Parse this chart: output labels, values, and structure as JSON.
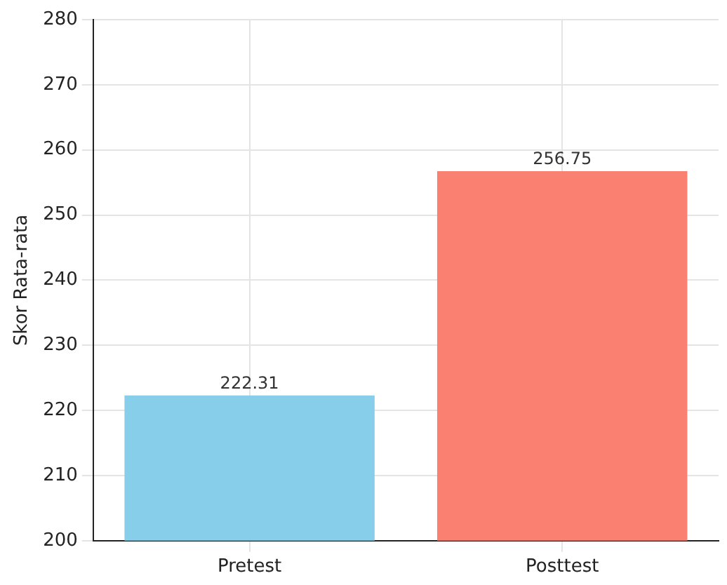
{
  "chart_data": {
    "type": "bar",
    "categories": [
      "Pretest",
      "Posttest"
    ],
    "values": [
      222.31,
      256.75
    ],
    "colors": [
      "#87ceeb",
      "#fa8072"
    ],
    "ylabel": "Skor Rata-rata",
    "ylim": [
      200,
      280
    ],
    "yticks": [
      200,
      210,
      220,
      230,
      240,
      250,
      260,
      270,
      280
    ],
    "grid": true,
    "data_labels": true
  }
}
